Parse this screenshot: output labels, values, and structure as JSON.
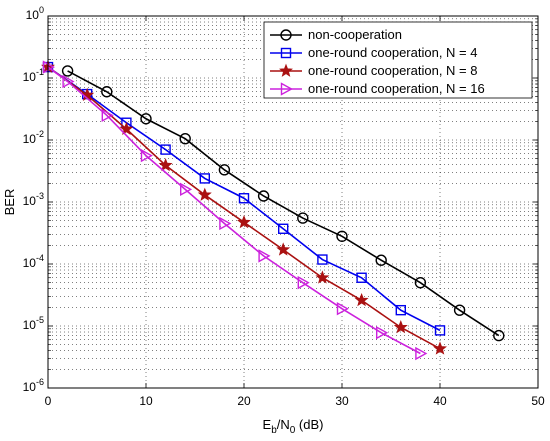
{
  "chart_data": {
    "type": "line",
    "xlabel": "E_b/N_0 (dB)",
    "xlabel_parts": {
      "main": "E",
      "sub1": "b",
      "mid": "/N",
      "sub2": "0",
      "tail": " (dB)"
    },
    "ylabel": "BER",
    "xlim": [
      0,
      50
    ],
    "ylim": [
      1e-06,
      1
    ],
    "yscale": "log",
    "grid": true,
    "legend_position": "top-right",
    "x_ticks": [
      "0",
      "10",
      "20",
      "30",
      "40",
      "50"
    ],
    "y_ticks": [
      {
        "base": "10",
        "exp": "0"
      },
      {
        "base": "10",
        "exp": "-1"
      },
      {
        "base": "10",
        "exp": "-2"
      },
      {
        "base": "10",
        "exp": "-3"
      },
      {
        "base": "10",
        "exp": "-4"
      },
      {
        "base": "10",
        "exp": "-5"
      },
      {
        "base": "10",
        "exp": "-6"
      }
    ],
    "series": [
      {
        "name": "non-cooperation",
        "color": "#000000",
        "marker": "circle",
        "x": [
          2,
          6,
          10,
          14,
          18,
          22,
          26,
          30,
          34,
          38,
          42,
          46
        ],
        "y": [
          0.13,
          0.06,
          0.022,
          0.0105,
          0.0033,
          0.00125,
          0.00055,
          0.00028,
          0.000115,
          5e-05,
          1.8e-05,
          7e-06
        ]
      },
      {
        "name": "one-round cooperation, N = 4",
        "color": "#0000ee",
        "marker": "square",
        "x": [
          0,
          4,
          8,
          12,
          16,
          20,
          24,
          28,
          32,
          36,
          40
        ],
        "y": [
          0.15,
          0.055,
          0.019,
          0.007,
          0.0024,
          0.00115,
          0.00037,
          0.000118,
          6e-05,
          1.8e-05,
          8.5e-06
        ]
      },
      {
        "name": "one-round cooperation, N = 8",
        "color": "#aa1111",
        "marker": "star",
        "x": [
          0,
          4,
          8,
          12,
          16,
          20,
          24,
          28,
          32,
          36,
          40
        ],
        "y": [
          0.15,
          0.053,
          0.015,
          0.0039,
          0.0013,
          0.00047,
          0.00017,
          6e-05,
          2.6e-05,
          9.5e-06,
          4.3e-06
        ]
      },
      {
        "name": "one-round cooperation, N = 16",
        "color": "#cc22dd",
        "marker": "triangle-right",
        "x": [
          0,
          2,
          6,
          10,
          14,
          18,
          22,
          26,
          30,
          34,
          38
        ],
        "y": [
          0.15,
          0.088,
          0.025,
          0.0056,
          0.0016,
          0.00045,
          0.000135,
          5e-05,
          1.9e-05,
          7.8e-06,
          3.6e-06
        ]
      }
    ]
  }
}
